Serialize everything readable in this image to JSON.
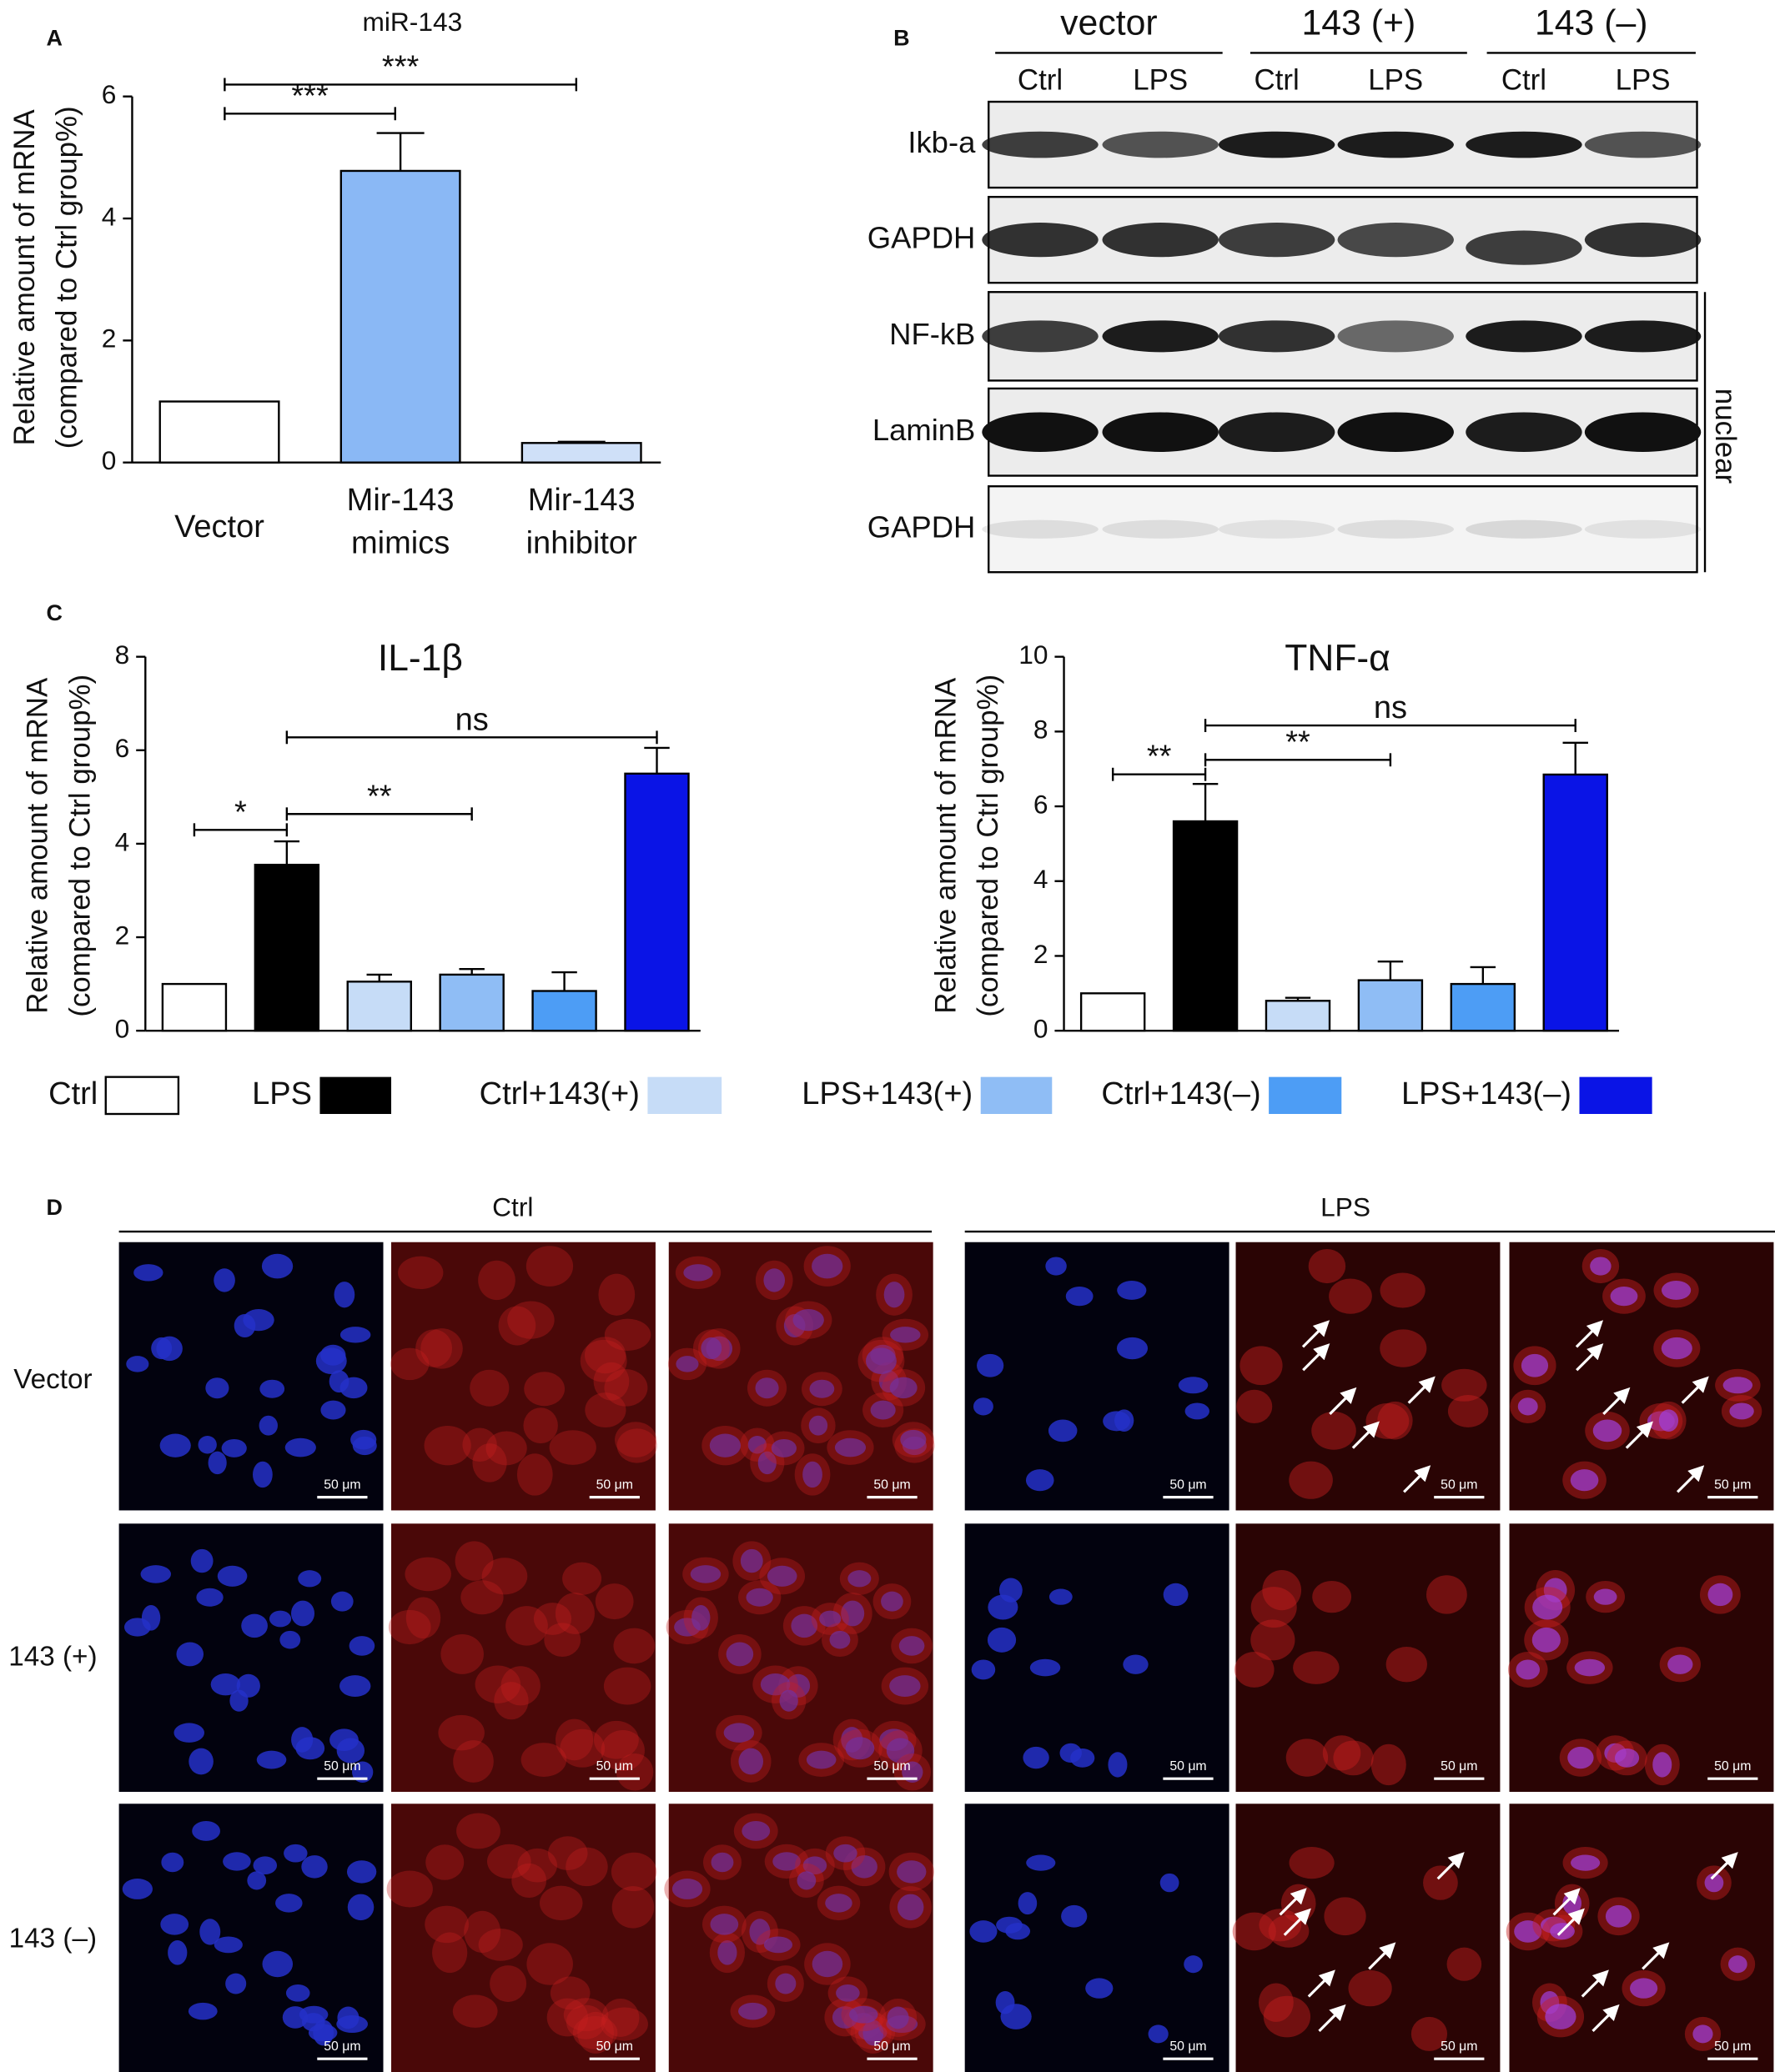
{
  "panel_labels": [
    "A",
    "B",
    "C",
    "D"
  ],
  "chart_data": [
    {
      "type": "bar",
      "title": "miR-143",
      "y_label": [
        "Relative amount of mRNA",
        "(compared to Ctrl group%)"
      ],
      "categories": [
        "Vector",
        "Mir-143 mimics",
        "Mir-143 inhibitor"
      ],
      "values": [
        1,
        4.78,
        0.32
      ],
      "errors": [
        null,
        0.62,
        0.02
      ],
      "colors": [
        "#ffffff",
        "#8ab8f5",
        "#cfe0f8"
      ],
      "ylim": [
        0,
        6
      ],
      "yticks": [
        0,
        2,
        4,
        6
      ],
      "significance": [
        "***",
        "***"
      ]
    },
    {
      "type": "bar",
      "title": "IL-1β",
      "y_label": [
        "Relative amount of mRNA",
        "(compared to Ctrl group%)"
      ],
      "categories": [
        "Ctrl",
        "LPS",
        "Ctrl+143(+)",
        "LPS+143(+)",
        "Ctrl+143(–)",
        "LPS+143(–)"
      ],
      "values": [
        1,
        3.55,
        1.05,
        1.2,
        0.85,
        5.5
      ],
      "errors": [
        null,
        0.5,
        0.15,
        0.12,
        0.4,
        0.55
      ],
      "colors": [
        "#ffffff",
        "#000000",
        "#c6dcf7",
        "#8fbdf5",
        "#4d9df5",
        "#0a14e6"
      ],
      "ylim": [
        0,
        8
      ],
      "yticks": [
        0,
        2,
        4,
        6,
        8
      ],
      "significance": [
        "*",
        "**",
        "ns"
      ],
      "legend": true
    },
    {
      "type": "bar",
      "title": "TNF-α",
      "y_label": [
        "Relative amount of mRNA",
        "(compared to Ctrl group%)"
      ],
      "values": [
        1,
        5.6,
        0.8,
        1.35,
        1.25,
        6.85
      ],
      "errors": [
        null,
        1.0,
        0.08,
        0.5,
        0.45,
        0.85
      ],
      "colors": [
        "#ffffff",
        "#000000",
        "#c6dcf7",
        "#8fbdf5",
        "#4d9df5",
        "#0a14e6"
      ],
      "ylim": [
        0,
        10
      ],
      "yticks": [
        0,
        2,
        4,
        6,
        8,
        10
      ],
      "significance": [
        "**",
        "**",
        "ns"
      ],
      "legend": false
    }
  ],
  "western": {
    "headers": [
      "vector",
      "143 (+)",
      "143 (–)"
    ],
    "lanes": [
      "Ctrl",
      "LPS",
      "Ctrl",
      "LPS",
      "Ctrl",
      "LPS"
    ],
    "rows": [
      "Ikb-a",
      "GAPDH",
      "NF-kB",
      "LaminB",
      "GAPDH"
    ],
    "bracket_label": "nuclear"
  },
  "microscopy": {
    "groups": [
      "Ctrl",
      "LPS"
    ],
    "rows": [
      "Vector",
      "143 (+)",
      "143 (–)"
    ],
    "scale_bar": "50 μm"
  }
}
